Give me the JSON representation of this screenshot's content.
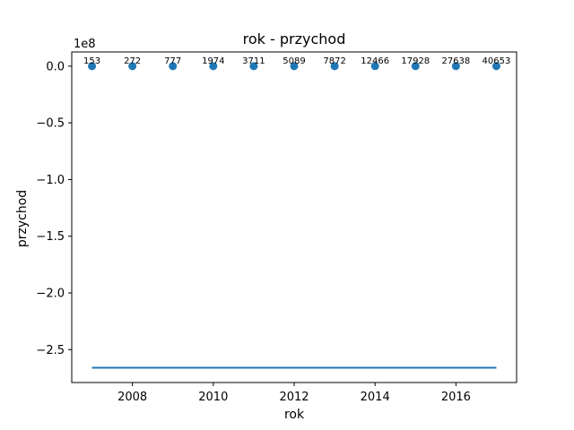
{
  "chart_data": {
    "type": "scatter",
    "title": "rok - przychod",
    "xlabel": "rok",
    "ylabel": "przychod",
    "y_offset_text": "1e8",
    "y_scale_factor": 100000000,
    "xlim": [
      2006.5,
      2017.5
    ],
    "ylim": [
      -279000000,
      12500000
    ],
    "x_ticks": [
      2008,
      2010,
      2012,
      2014,
      2016
    ],
    "y_ticks": [
      0.0,
      -0.5,
      -1.0,
      -1.5,
      -2.0,
      -2.5
    ],
    "y_tick_labels": [
      "0.0",
      "−0.5",
      "−1.0",
      "−1.5",
      "−2.0",
      "−2.5"
    ],
    "grid": false,
    "color": "#1f77b4",
    "series": [
      {
        "kind": "points",
        "x": [
          2007,
          2008,
          2009,
          2010,
          2011,
          2012,
          2013,
          2014,
          2015,
          2016,
          2017
        ],
        "y": [
          153,
          272,
          777,
          1974,
          3711,
          5089,
          7872,
          12466,
          17928,
          27638,
          40653
        ],
        "labels": [
          "153",
          "272",
          "777",
          "1974",
          "3711",
          "5089",
          "7872",
          "12466",
          "17928",
          "27638",
          "40653"
        ]
      },
      {
        "kind": "line",
        "x": [
          2007,
          2017
        ],
        "y": [
          -266000000,
          -266000000
        ]
      }
    ]
  }
}
